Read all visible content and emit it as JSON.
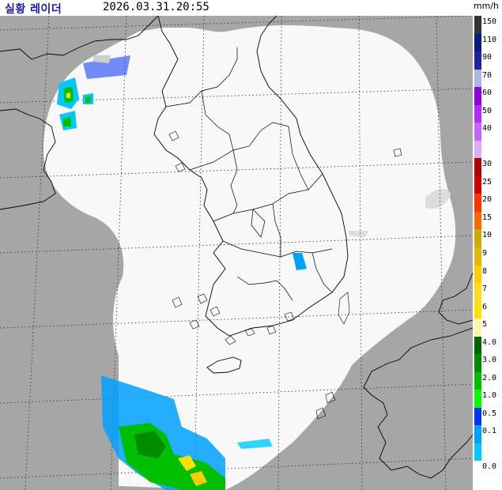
{
  "header": {
    "title": "실황 레이더",
    "timestamp": "2026.03.31.20:55",
    "unit": "mm/h"
  },
  "map": {
    "colors": {
      "outside_coverage": "#a6a6a6",
      "coverage": "#f8f8f8",
      "graticule": "#2a2a2a"
    }
  },
  "legend": {
    "entries": [
      {
        "label": "150",
        "color": "#333333"
      },
      {
        "label": "110",
        "color": "#021c80"
      },
      {
        "label": "90",
        "color": "#1f219d"
      },
      {
        "label": "70",
        "color": "#b3b4de"
      },
      {
        "label": "60",
        "color": "#9300e4"
      },
      {
        "label": "50",
        "color": "#b329ff"
      },
      {
        "label": "40",
        "color": "#c963ff"
      },
      {
        "label": "",
        "color": "#e0a9ff"
      },
      {
        "label": "30",
        "color": "#b40000"
      },
      {
        "label": "25",
        "color": "#d20000"
      },
      {
        "label": "20",
        "color": "#ff3200"
      },
      {
        "label": "15",
        "color": "#ff6600"
      },
      {
        "label": "10",
        "color": "#ccaa00"
      },
      {
        "label": "9",
        "color": "#e0b900"
      },
      {
        "label": "8",
        "color": "#f9cd00"
      },
      {
        "label": "7",
        "color": "#ffdc1f"
      },
      {
        "label": "6",
        "color": "#ffe100"
      },
      {
        "label": "5",
        "color": "#fff5a6"
      },
      {
        "label": "4.0",
        "color": "#006400"
      },
      {
        "label": "3.0",
        "color": "#008c00"
      },
      {
        "label": "2.0",
        "color": "#00be00"
      },
      {
        "label": "1.0",
        "color": "#00ff00"
      },
      {
        "label": "0.5",
        "color": "#0033f5"
      },
      {
        "label": "0.1",
        "color": "#00a0ff"
      },
      {
        "label": "",
        "color": "#00c8ff"
      },
      {
        "label": "0.0",
        "color": "#ffffff"
      }
    ]
  }
}
